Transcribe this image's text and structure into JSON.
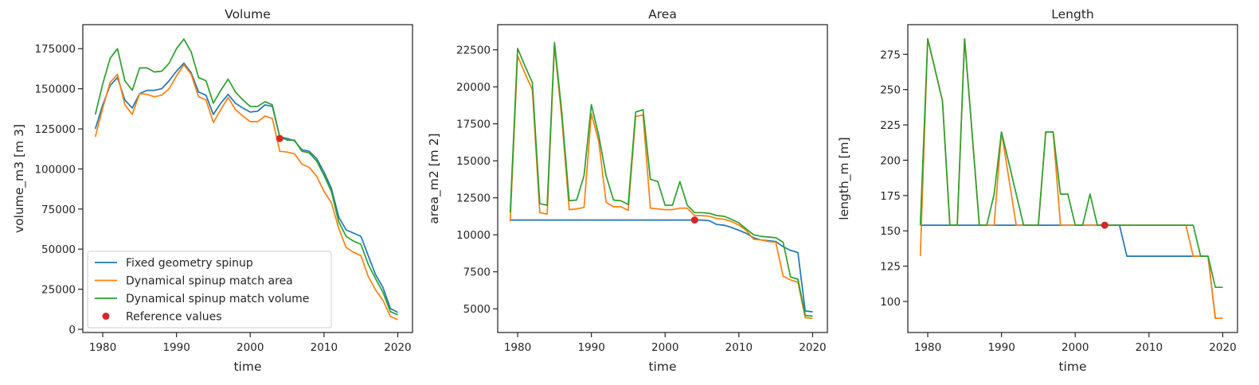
{
  "colors": {
    "fixed": "#1f77b4",
    "area": "#ff7f0e",
    "volume": "#2ca02c",
    "reference": "#d62728"
  },
  "legend": {
    "placement": "lower-left of first panel",
    "entries": [
      {
        "key": "fixed",
        "label": "Fixed geometry spinup",
        "marker": "line"
      },
      {
        "key": "area",
        "label": "Dynamical spinup match area",
        "marker": "line"
      },
      {
        "key": "volume",
        "label": "Dynamical spinup match volume",
        "marker": "line"
      },
      {
        "key": "reference",
        "label": "Reference values",
        "marker": "dot"
      }
    ]
  },
  "chart_data": [
    {
      "type": "line",
      "title": "Volume",
      "xlabel": "time",
      "ylabel": "volume_m3 [m 3]",
      "xlim": [
        1977.3,
        2022
      ],
      "ylim": [
        -2000,
        190000
      ],
      "xticks": [
        1980,
        1990,
        2000,
        2010,
        2020
      ],
      "yticks": [
        0,
        25000,
        50000,
        75000,
        100000,
        125000,
        150000,
        175000
      ],
      "grid": false,
      "x": [
        1979,
        1980,
        1981,
        1982,
        1983,
        1984,
        1985,
        1986,
        1987,
        1988,
        1989,
        1990,
        1991,
        1992,
        1993,
        1994,
        1995,
        1996,
        1997,
        1998,
        1999,
        2000,
        2001,
        2002,
        2003,
        2004,
        2005,
        2006,
        2007,
        2008,
        2009,
        2010,
        2011,
        2012,
        2013,
        2014,
        2015,
        2016,
        2017,
        2018,
        2019,
        2020
      ],
      "series": [
        {
          "key": "fixed",
          "name": "Fixed geometry spinup",
          "values": [
            125000,
            140000,
            152000,
            157000,
            143000,
            138000,
            147000,
            149000,
            149000,
            150000,
            155000,
            161000,
            166000,
            160000,
            148000,
            146000,
            134000,
            141000,
            146500,
            141000,
            138000,
            135500,
            136000,
            140000,
            139000,
            120000,
            119000,
            117500,
            112000,
            111000,
            106500,
            98000,
            88000,
            70000,
            62000,
            60000,
            58000,
            46000,
            34000,
            26000,
            13000,
            10500
          ]
        },
        {
          "key": "area",
          "name": "Dynamical spinup match area",
          "values": [
            120000,
            138000,
            154000,
            159000,
            140000,
            134000,
            147000,
            146500,
            145000,
            146000,
            150000,
            158000,
            165000,
            159000,
            145000,
            143000,
            129000,
            137000,
            144500,
            137000,
            133000,
            129500,
            129500,
            133000,
            131500,
            111000,
            110500,
            109500,
            103000,
            101000,
            95500,
            86000,
            79000,
            63000,
            51000,
            48000,
            46000,
            33000,
            24500,
            18000,
            8000,
            6000
          ]
        },
        {
          "key": "volume",
          "name": "Dynamical spinup match volume",
          "values": [
            134000,
            153000,
            169000,
            175000,
            155000,
            149000,
            163000,
            163000,
            160500,
            161000,
            166000,
            175000,
            181000,
            173000,
            157000,
            155000,
            141000,
            149000,
            156000,
            148000,
            143000,
            139000,
            139000,
            142000,
            140000,
            120000,
            118000,
            118000,
            111000,
            110000,
            105000,
            96000,
            86000,
            67000,
            58000,
            55000,
            53000,
            40500,
            31500,
            23000,
            11000,
            9000
          ]
        }
      ],
      "reference": {
        "x": 2004,
        "y": 119000
      }
    },
    {
      "type": "line",
      "title": "Area",
      "xlabel": "time",
      "ylabel": "area_m2 [m 2]",
      "xlim": [
        1977.3,
        2022
      ],
      "ylim": [
        3400,
        24200
      ],
      "xticks": [
        1980,
        1990,
        2000,
        2010,
        2020
      ],
      "yticks": [
        5000,
        7500,
        10000,
        12500,
        15000,
        17500,
        20000,
        22500
      ],
      "grid": false,
      "x": [
        1979,
        1980,
        1981,
        1982,
        1983,
        1984,
        1985,
        1986,
        1987,
        1988,
        1989,
        1990,
        1991,
        1992,
        1993,
        1994,
        1995,
        1996,
        1997,
        1998,
        1999,
        2000,
        2001,
        2002,
        2003,
        2004,
        2005,
        2006,
        2007,
        2008,
        2009,
        2010,
        2011,
        2012,
        2013,
        2014,
        2015,
        2016,
        2017,
        2018,
        2019,
        2020
      ],
      "series": [
        {
          "key": "fixed",
          "name": "Fixed geometry spinup",
          "values": [
            11000,
            11000,
            11000,
            11000,
            11000,
            11000,
            11000,
            11000,
            11000,
            11000,
            11000,
            11000,
            11000,
            11000,
            11000,
            11000,
            11000,
            11000,
            11000,
            11000,
            11000,
            11000,
            11000,
            11000,
            11000,
            11000,
            11000,
            10950,
            10700,
            10650,
            10500,
            10300,
            10100,
            9800,
            9650,
            9600,
            9550,
            9200,
            8950,
            8800,
            4850,
            4800
          ]
        },
        {
          "key": "area",
          "name": "Dynamical spinup match area",
          "values": [
            10900,
            22100,
            20900,
            19800,
            11500,
            11400,
            22800,
            17800,
            11700,
            11750,
            11850,
            18200,
            16300,
            12200,
            11900,
            11900,
            11650,
            18000,
            18100,
            11800,
            11750,
            11700,
            11700,
            11800,
            11800,
            11300,
            11300,
            11250,
            11100,
            11050,
            10900,
            10650,
            10300,
            9700,
            9650,
            9550,
            9500,
            7200,
            6950,
            6800,
            4400,
            4350
          ]
        },
        {
          "key": "volume",
          "name": "Dynamical spinup match volume",
          "values": [
            11500,
            22600,
            21400,
            20300,
            12100,
            12000,
            23000,
            18200,
            12300,
            12350,
            14000,
            18800,
            16700,
            14000,
            12350,
            12300,
            12050,
            18300,
            18450,
            13750,
            13600,
            12000,
            12000,
            13600,
            12000,
            11500,
            11500,
            11450,
            11300,
            11250,
            11050,
            10800,
            10400,
            10000,
            9900,
            9850,
            9800,
            9500,
            7150,
            7000,
            4550,
            4500
          ]
        }
      ],
      "reference": {
        "x": 2004,
        "y": 11000
      }
    },
    {
      "type": "line",
      "title": "Length",
      "xlabel": "time",
      "ylabel": "length_m [m]",
      "xlim": [
        1977.3,
        2022
      ],
      "ylim": [
        78,
        296
      ],
      "xticks": [
        1980,
        1990,
        2000,
        2010,
        2020
      ],
      "yticks": [
        100,
        125,
        150,
        175,
        200,
        225,
        250,
        275
      ],
      "grid": false,
      "x": [
        1979,
        1980,
        1981,
        1982,
        1983,
        1984,
        1985,
        1986,
        1987,
        1988,
        1989,
        1990,
        1991,
        1992,
        1993,
        1994,
        1995,
        1996,
        1997,
        1998,
        1999,
        2000,
        2001,
        2002,
        2003,
        2004,
        2005,
        2006,
        2007,
        2008,
        2009,
        2010,
        2011,
        2012,
        2013,
        2014,
        2015,
        2016,
        2017,
        2018,
        2019,
        2020
      ],
      "series": [
        {
          "key": "fixed",
          "name": "Fixed geometry spinup",
          "values": [
            154,
            154,
            154,
            154,
            154,
            154,
            154,
            154,
            154,
            154,
            154,
            154,
            154,
            154,
            154,
            154,
            154,
            154,
            154,
            154,
            154,
            154,
            154,
            154,
            154,
            154,
            154,
            154,
            132,
            132,
            132,
            132,
            132,
            132,
            132,
            132,
            132,
            132,
            132,
            132,
            88,
            88
          ]
        },
        {
          "key": "area",
          "name": "Dynamical spinup match area",
          "values": [
            132,
            286,
            264,
            242,
            154,
            154,
            286,
            220,
            154,
            154,
            154,
            220,
            187,
            154,
            154,
            154,
            154,
            220,
            220,
            154,
            154,
            154,
            154,
            154,
            154,
            154,
            154,
            154,
            154,
            154,
            154,
            154,
            154,
            154,
            154,
            154,
            154,
            132,
            132,
            132,
            88,
            88
          ]
        },
        {
          "key": "volume",
          "name": "Dynamical spinup match volume",
          "values": [
            154,
            286,
            264,
            242,
            154,
            154,
            286,
            220,
            154,
            154,
            176,
            220,
            198,
            176,
            154,
            154,
            154,
            220,
            220,
            176,
            176,
            154,
            154,
            176,
            154,
            154,
            154,
            154,
            154,
            154,
            154,
            154,
            154,
            154,
            154,
            154,
            154,
            154,
            132,
            132,
            110,
            110
          ]
        }
      ],
      "reference": {
        "x": 2004,
        "y": 154
      }
    }
  ]
}
